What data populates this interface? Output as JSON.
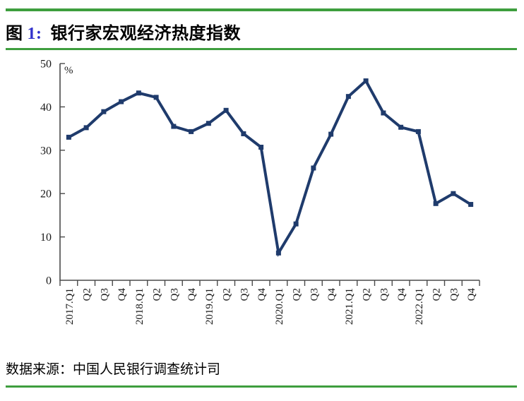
{
  "figure": {
    "label": "图",
    "number": "1:",
    "title": "银行家宏观经济热度指数"
  },
  "chart_data": {
    "type": "line",
    "title": "银行家宏观经济热度指数",
    "unit_label": "%",
    "categories": [
      "2017.Q1",
      "Q2",
      "Q3",
      "Q4",
      "2018.Q1",
      "Q2",
      "Q3",
      "Q4",
      "2019.Q1",
      "Q2",
      "Q3",
      "Q4",
      "2020.Q1",
      "Q2",
      "Q3",
      "Q4",
      "2021.Q1",
      "Q2",
      "Q3",
      "Q4",
      "2022.Q1",
      "Q2",
      "Q3",
      "Q4"
    ],
    "values": [
      33.0,
      35.2,
      38.9,
      41.2,
      43.2,
      42.2,
      35.5,
      34.3,
      36.2,
      39.2,
      33.8,
      30.7,
      6.3,
      13.0,
      25.9,
      33.7,
      42.4,
      46.0,
      38.6,
      35.3,
      34.3,
      17.7,
      20.0,
      17.5
    ],
    "ylim": [
      0,
      50
    ],
    "yticks": [
      0,
      10,
      20,
      30,
      40,
      50
    ],
    "grid": false,
    "legend": "none",
    "marker": "square"
  },
  "source": {
    "text": "数据来源：中国人民银行调查统计司"
  },
  "colors": {
    "rule_green": "#3E9E3E",
    "figure_number_blue": "#3333CC",
    "line_navy": "#1F3B6C",
    "axis_gray": "#4A4A4A"
  }
}
